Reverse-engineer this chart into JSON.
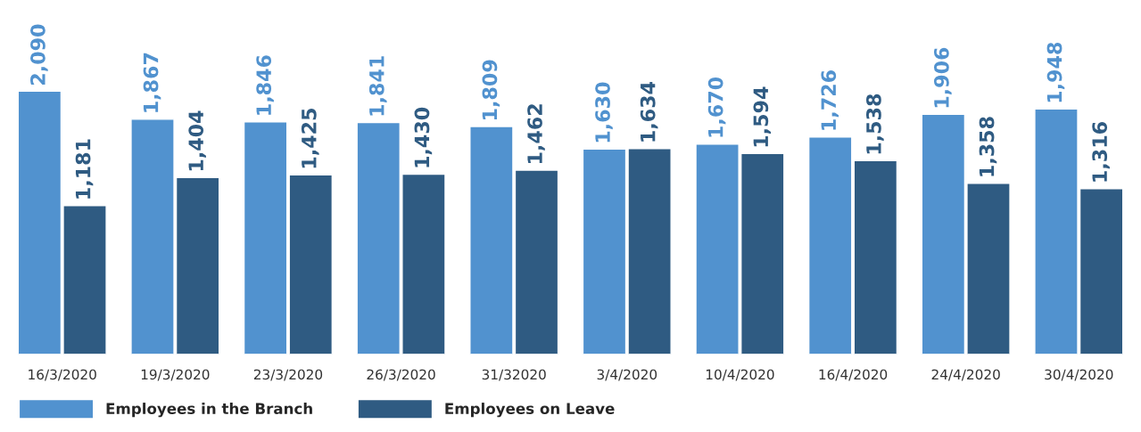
{
  "chart_data": {
    "type": "bar",
    "categories": [
      "16/3/2020",
      "19/3/2020",
      "23/3/2020",
      "26/3/2020",
      "31/32020",
      "3/4/2020",
      "10/4/2020",
      "16/4/2020",
      "24/4/2020",
      "30/4/2020"
    ],
    "series": [
      {
        "name": "Employees in the Branch",
        "color": "#5192cf",
        "values": [
          2090,
          1867,
          1846,
          1841,
          1809,
          1630,
          1670,
          1726,
          1906,
          1948
        ],
        "value_labels": [
          "2,090",
          "1,867",
          "1,846",
          "1,841",
          "1,809",
          "1,630",
          "1,670",
          "1,726",
          "1,906",
          "1,948"
        ]
      },
      {
        "name": "Employees on Leave",
        "color": "#2f5b82",
        "values": [
          1181,
          1404,
          1425,
          1430,
          1462,
          1634,
          1594,
          1538,
          1358,
          1316
        ],
        "value_labels": [
          "1,181",
          "1,404",
          "1,425",
          "1,430",
          "1,462",
          "1,634",
          "1,594",
          "1,538",
          "1,358",
          "1,316"
        ]
      }
    ],
    "legend": "bottom left",
    "grid": false
  }
}
